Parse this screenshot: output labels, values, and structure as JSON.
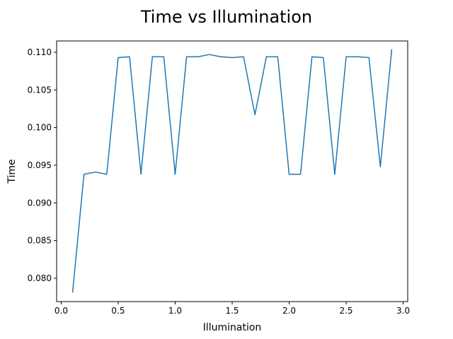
{
  "chart_data": {
    "type": "line",
    "title": "Time vs Illumination",
    "xlabel": "Illumination",
    "ylabel": "Time",
    "xlim": [
      -0.04,
      3.04
    ],
    "ylim": [
      0.0769,
      0.1115
    ],
    "xticks": [
      0.0,
      0.5,
      1.0,
      1.5,
      2.0,
      2.5,
      3.0
    ],
    "xtick_labels": [
      "0.0",
      "0.5",
      "1.0",
      "1.5",
      "2.0",
      "2.5",
      "3.0"
    ],
    "yticks": [
      0.08,
      0.085,
      0.09,
      0.095,
      0.1,
      0.105,
      0.11
    ],
    "ytick_labels": [
      "0.080",
      "0.085",
      "0.090",
      "0.095",
      "0.100",
      "0.105",
      "0.110"
    ],
    "grid": false,
    "series": [
      {
        "color": "#1f77b4",
        "x": [
          0.1,
          0.2,
          0.3,
          0.4,
          0.5,
          0.6,
          0.7,
          0.8,
          0.9,
          1.0,
          1.1,
          1.2,
          1.3,
          1.4,
          1.5,
          1.6,
          1.7,
          1.8,
          1.9,
          2.0,
          2.1,
          2.2,
          2.3,
          2.4,
          2.5,
          2.6,
          2.7,
          2.8,
          2.9
        ],
        "y": [
          0.0781,
          0.0938,
          0.0941,
          0.0938,
          0.1093,
          0.1094,
          0.0938,
          0.1094,
          0.1094,
          0.0938,
          0.1094,
          0.1094,
          0.1097,
          0.1094,
          0.1093,
          0.1094,
          0.1017,
          0.1094,
          0.1094,
          0.0938,
          0.0938,
          0.1094,
          0.1093,
          0.0938,
          0.1094,
          0.1094,
          0.1093,
          0.0948,
          0.1104
        ]
      }
    ]
  }
}
